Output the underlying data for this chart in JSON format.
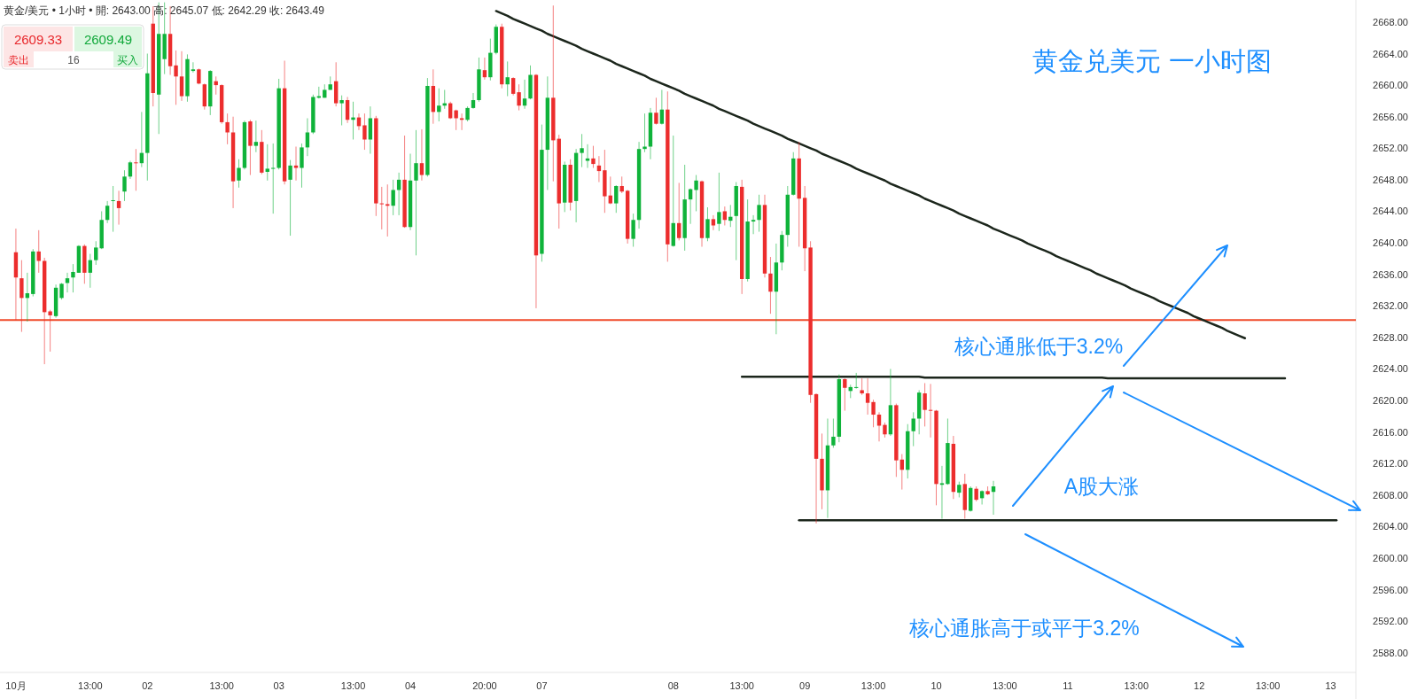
{
  "chart_data": {
    "type": "candlestick",
    "title": "黄金/美元 • 1小时 • 開: 2643.00 高: 2645.07 低: 2642.29 收: 2643.49",
    "categories": [
      "10月",
      null,
      null,
      null,
      null,
      null,
      null,
      null,
      null,
      null,
      null,
      null,
      null,
      "13:00",
      null,
      null,
      null,
      null,
      null,
      null,
      null,
      null,
      null,
      "02",
      null,
      null,
      null,
      null,
      null,
      null,
      null,
      null,
      null,
      null,
      null,
      null,
      "13:00",
      null,
      null,
      null,
      null,
      null,
      null,
      null,
      null,
      null,
      "03",
      null,
      null,
      null,
      null,
      null,
      null,
      null,
      null,
      null,
      null,
      null,
      null,
      "13:00",
      null,
      null,
      null,
      null,
      null,
      null,
      null,
      null,
      null,
      "04",
      null,
      null,
      null,
      null,
      null,
      null,
      null,
      null,
      null,
      null,
      null,
      null,
      "20:00",
      null,
      null,
      null,
      null,
      null,
      null,
      null,
      null,
      null,
      "07",
      null,
      null,
      null,
      null,
      null,
      null,
      null,
      null,
      null,
      null,
      null,
      null,
      null,
      null,
      null,
      null,
      null,
      null,
      null,
      null,
      null,
      null,
      "08",
      null,
      null,
      null,
      null,
      null,
      null,
      null,
      null,
      null,
      null,
      null,
      "13:00",
      null,
      null,
      null,
      null,
      null,
      null,
      null,
      null,
      null,
      null,
      "09",
      null,
      null,
      null,
      null,
      null,
      null,
      null,
      null,
      null,
      null,
      null,
      "13:00",
      null,
      null,
      null,
      null,
      null,
      null,
      null,
      null,
      null,
      null,
      "10",
      null,
      null,
      null,
      null,
      null,
      null,
      null,
      null,
      null,
      null,
      null,
      "13:00",
      null,
      null,
      null,
      null,
      null,
      null,
      null,
      null,
      null,
      null,
      "11",
      null,
      null,
      null,
      null,
      null,
      null,
      null,
      null,
      null,
      null,
      null,
      "13:00",
      null,
      null,
      null,
      null,
      null,
      null,
      null,
      null,
      null,
      null,
      "12",
      null,
      null,
      null,
      null,
      null,
      null,
      null,
      null,
      null,
      null,
      null,
      "13:00",
      null,
      null,
      null,
      null,
      null,
      null,
      null,
      null,
      null,
      null,
      "13",
      null,
      null,
      null,
      null
    ],
    "ohlc": [
      [
        2638.8,
        2641.8,
        2630.2,
        2635.6
      ],
      [
        2635.5,
        2637.8,
        2628.7,
        2633.0
      ],
      [
        2633.0,
        2636.2,
        2630.0,
        2633.6
      ],
      [
        2633.5,
        2639.2,
        2633.2,
        2638.9
      ],
      [
        2638.9,
        2641.6,
        2636.2,
        2637.7
      ],
      [
        2637.7,
        2638.1,
        2624.6,
        2631.2
      ],
      [
        2631.3,
        2631.5,
        2626.2,
        2630.8
      ],
      [
        2630.7,
        2634.7,
        2630.5,
        2634.3
      ],
      [
        2633.0,
        2634.9,
        2632.8,
        2634.8
      ],
      [
        2634.9,
        2636.2,
        2633.7,
        2635.5
      ],
      [
        2635.6,
        2637.3,
        2633.7,
        2636.3
      ],
      [
        2636.2,
        2639.7,
        2636.2,
        2639.6
      ],
      [
        2639.6,
        2639.8,
        2634.8,
        2636.2
      ],
      [
        2636.2,
        2638.6,
        2634.3,
        2637.8
      ],
      [
        2637.8,
        2640.2,
        2637.2,
        2639.4
      ],
      [
        2639.3,
        2644.0,
        2639.2,
        2642.9
      ],
      [
        2642.9,
        2645.3,
        2642.5,
        2644.7
      ],
      [
        2645.3,
        2647.2,
        2641.4,
        2645.4
      ],
      [
        2645.3,
        2646.6,
        2642.3,
        2644.4
      ],
      [
        2646.5,
        2649.2,
        2645.3,
        2648.4
      ],
      [
        2648.4,
        2650.4,
        2648.1,
        2650.2
      ],
      [
        2650.2,
        2651.9,
        2646.6,
        2650.1
      ],
      [
        2650.1,
        2656.6,
        2649.6,
        2651.4
      ],
      [
        2651.4,
        2664.0,
        2647.9,
        2661.5
      ],
      [
        2667.8,
        2670.0,
        2657.3,
        2659.0
      ],
      [
        2658.8,
        2670.5,
        2653.8,
        2666.5
      ],
      [
        2663.3,
        2670.5,
        2661.4,
        2666.5
      ],
      [
        2666.5,
        2670.0,
        2661.3,
        2662.4
      ],
      [
        2662.5,
        2664.4,
        2657.5,
        2661.1
      ],
      [
        2661.1,
        2664.3,
        2658.0,
        2658.6
      ],
      [
        2658.6,
        2663.9,
        2657.9,
        2663.3
      ],
      [
        2661.8,
        2662.9,
        2661.6,
        2662.0
      ],
      [
        2662.0,
        2662.1,
        2660.1,
        2660.2
      ],
      [
        2660.1,
        2660.2,
        2656.9,
        2657.3
      ],
      [
        2657.3,
        2661.9,
        2656.2,
        2661.8
      ],
      [
        2660.5,
        2661.1,
        2658.8,
        2660.0
      ],
      [
        2660.0,
        2660.1,
        2655.1,
        2655.3
      ],
      [
        2655.3,
        2656.4,
        2652.5,
        2654.0
      ],
      [
        2654.0,
        2656.0,
        2644.4,
        2647.8
      ],
      [
        2647.9,
        2650.6,
        2647.0,
        2649.5
      ],
      [
        2649.5,
        2655.5,
        2649.3,
        2655.3
      ],
      [
        2655.4,
        2655.6,
        2648.6,
        2652.3
      ],
      [
        2652.3,
        2655.5,
        2651.5,
        2652.8
      ],
      [
        2652.8,
        2654.3,
        2648.7,
        2648.9
      ],
      [
        2649.0,
        2652.5,
        2647.9,
        2649.4
      ],
      [
        2649.4,
        2652.6,
        2643.7,
        2649.5
      ],
      [
        2649.5,
        2660.8,
        2649.3,
        2659.6
      ],
      [
        2659.6,
        2663.1,
        2647.4,
        2647.8
      ],
      [
        2648.0,
        2650.5,
        2640.9,
        2649.8
      ],
      [
        2649.8,
        2652.2,
        2647.9,
        2649.5
      ],
      [
        2649.5,
        2652.6,
        2647.0,
        2652.1
      ],
      [
        2652.1,
        2655.8,
        2651.0,
        2654.0
      ],
      [
        2654.0,
        2658.8,
        2653.8,
        2658.5
      ],
      [
        2658.4,
        2659.8,
        2658.3,
        2658.6
      ],
      [
        2658.4,
        2660.1,
        2658.4,
        2659.4
      ],
      [
        2659.4,
        2661.1,
        2659.4,
        2660.1
      ],
      [
        2660.5,
        2662.9,
        2657.3,
        2657.7
      ],
      [
        2657.7,
        2658.7,
        2654.9,
        2658.1
      ],
      [
        2658.1,
        2658.5,
        2655.2,
        2655.6
      ],
      [
        2655.6,
        2657.9,
        2653.1,
        2655.9
      ],
      [
        2655.9,
        2656.4,
        2654.3,
        2654.8
      ],
      [
        2654.9,
        2656.4,
        2651.8,
        2653.1
      ],
      [
        2653.1,
        2657.3,
        2651.3,
        2655.8
      ],
      [
        2655.8,
        2656.1,
        2643.4,
        2645.0
      ],
      [
        2645.0,
        2647.1,
        2641.7,
        2644.9
      ],
      [
        2644.9,
        2647.4,
        2640.8,
        2644.7
      ],
      [
        2644.7,
        2648.0,
        2643.5,
        2646.7
      ],
      [
        2646.7,
        2648.9,
        2643.5,
        2648.0
      ],
      [
        2648.0,
        2653.6,
        2641.9,
        2642.0
      ],
      [
        2642.0,
        2651.3,
        2641.6,
        2647.9
      ],
      [
        2647.9,
        2654.3,
        2638.4,
        2650.1
      ],
      [
        2650.1,
        2654.4,
        2647.9,
        2648.6
      ],
      [
        2648.6,
        2660.9,
        2648.4,
        2659.9
      ],
      [
        2659.9,
        2662.0,
        2655.1,
        2656.6
      ],
      [
        2656.6,
        2659.6,
        2655.4,
        2657.4
      ],
      [
        2657.4,
        2659.4,
        2657.0,
        2657.7
      ],
      [
        2657.7,
        2657.9,
        2655.7,
        2655.8
      ],
      [
        2656.8,
        2656.9,
        2654.3,
        2655.8
      ],
      [
        2655.8,
        2656.4,
        2654.3,
        2655.6
      ],
      [
        2655.6,
        2657.3,
        2655.4,
        2657.1
      ],
      [
        2657.1,
        2659.0,
        2657.0,
        2658.1
      ],
      [
        2658.1,
        2663.5,
        2657.9,
        2662.0
      ],
      [
        2661.9,
        2663.5,
        2660.7,
        2661.0
      ],
      [
        2661.0,
        2665.9,
        2660.6,
        2664.1
      ],
      [
        2664.1,
        2667.7,
        2663.9,
        2667.4
      ],
      [
        2667.4,
        2667.8,
        2659.6,
        2660.1
      ],
      [
        2660.1,
        2663.0,
        2658.6,
        2661.0
      ],
      [
        2660.9,
        2661.0,
        2658.7,
        2658.9
      ],
      [
        2659.1,
        2660.1,
        2656.8,
        2657.4
      ],
      [
        2657.4,
        2660.7,
        2657.0,
        2658.3
      ],
      [
        2658.3,
        2662.5,
        2658.2,
        2661.3
      ],
      [
        2661.3,
        2661.4,
        2631.7,
        2638.4
      ],
      [
        2638.6,
        2655.0,
        2637.6,
        2651.8
      ],
      [
        2651.8,
        2661.1,
        2646.7,
        2658.4
      ],
      [
        2658.4,
        2670.1,
        2647.8,
        2653.0
      ],
      [
        2653.2,
        2653.7,
        2641.8,
        2645.0
      ],
      [
        2645.1,
        2650.3,
        2643.9,
        2649.9
      ],
      [
        2649.9,
        2650.6,
        2644.1,
        2645.1
      ],
      [
        2645.3,
        2651.9,
        2642.6,
        2651.4
      ],
      [
        2651.4,
        2653.8,
        2649.6,
        2652.0
      ],
      [
        2650.4,
        2652.5,
        2649.5,
        2650.7
      ],
      [
        2650.7,
        2652.3,
        2649.5,
        2650.0
      ],
      [
        2649.8,
        2651.0,
        2647.7,
        2649.1
      ],
      [
        2649.2,
        2651.8,
        2643.8,
        2645.9
      ],
      [
        2646.0,
        2648.4,
        2644.9,
        2645.0
      ],
      [
        2645.0,
        2647.3,
        2643.8,
        2647.2
      ],
      [
        2647.2,
        2648.4,
        2646.3,
        2646.5
      ],
      [
        2646.6,
        2646.7,
        2639.9,
        2640.5
      ],
      [
        2640.5,
        2643.7,
        2639.5,
        2642.9
      ],
      [
        2642.9,
        2652.8,
        2641.8,
        2651.9
      ],
      [
        2651.9,
        2656.4,
        2651.5,
        2652.2
      ],
      [
        2652.2,
        2657.1,
        2650.6,
        2656.5
      ],
      [
        2656.5,
        2658.4,
        2655.0,
        2655.1
      ],
      [
        2655.1,
        2659.4,
        2655.0,
        2656.9
      ],
      [
        2656.9,
        2659.2,
        2637.6,
        2639.8
      ],
      [
        2639.6,
        2653.6,
        2639.5,
        2642.5
      ],
      [
        2642.5,
        2647.6,
        2640.3,
        2640.6
      ],
      [
        2640.6,
        2649.9,
        2639.0,
        2645.5
      ],
      [
        2645.5,
        2646.9,
        2642.4,
        2646.8
      ],
      [
        2646.7,
        2648.6,
        2644.0,
        2647.9
      ],
      [
        2647.8,
        2647.9,
        2639.5,
        2640.6
      ],
      [
        2640.6,
        2644.5,
        2640.2,
        2643.0
      ],
      [
        2643.0,
        2643.5,
        2641.6,
        2642.2
      ],
      [
        2642.4,
        2648.9,
        2641.5,
        2643.9
      ],
      [
        2644.0,
        2644.6,
        2642.2,
        2642.9
      ],
      [
        2642.8,
        2644.8,
        2642.0,
        2643.3
      ],
      [
        2643.4,
        2647.7,
        2637.8,
        2647.2
      ],
      [
        2647.1,
        2648.0,
        2633.5,
        2635.4
      ],
      [
        2635.4,
        2645.5,
        2635.1,
        2642.7
      ],
      [
        2642.7,
        2643.5,
        2641.1,
        2642.9
      ],
      [
        2642.9,
        2646.1,
        2641.4,
        2644.8
      ],
      [
        2644.8,
        2646.1,
        2635.6,
        2636.1
      ],
      [
        2636.1,
        2638.2,
        2631.0,
        2633.8
      ],
      [
        2633.8,
        2639.9,
        2628.4,
        2637.5
      ],
      [
        2637.5,
        2641.5,
        2636.5,
        2641.0
      ],
      [
        2641.0,
        2647.2,
        2639.5,
        2646.1
      ],
      [
        2646.1,
        2651.5,
        2646.0,
        2650.7
      ],
      [
        2650.7,
        2652.8,
        2639.5,
        2645.6
      ],
      [
        2645.7,
        2647.2,
        2636.4,
        2639.3
      ],
      [
        2639.4,
        2640.2,
        2619.7,
        2620.7
      ],
      [
        2620.8,
        2620.9,
        2604.4,
        2612.6
      ],
      [
        2612.6,
        2615.8,
        2606.2,
        2608.6
      ],
      [
        2608.6,
        2617.7,
        2605.1,
        2614.3
      ],
      [
        2614.3,
        2617.7,
        2614.0,
        2615.4
      ],
      [
        2615.4,
        2623.3,
        2614.7,
        2622.7
      ],
      [
        2622.7,
        2622.8,
        2618.7,
        2621.6
      ],
      [
        2621.2,
        2622.0,
        2620.3,
        2621.7
      ],
      [
        2621.6,
        2623.5,
        2621.5,
        2621.7
      ],
      [
        2621.3,
        2622.8,
        2620.7,
        2620.9
      ],
      [
        2620.9,
        2622.8,
        2618.2,
        2619.7
      ],
      [
        2619.8,
        2620.1,
        2616.6,
        2618.2
      ],
      [
        2618.2,
        2618.5,
        2614.8,
        2616.8
      ],
      [
        2616.9,
        2617.2,
        2615.3,
        2615.7
      ],
      [
        2615.7,
        2624.0,
        2615.5,
        2619.4
      ],
      [
        2619.4,
        2619.6,
        2610.3,
        2612.4
      ],
      [
        2612.5,
        2613.2,
        2608.7,
        2611.2
      ],
      [
        2611.2,
        2617.0,
        2610.1,
        2616.1
      ],
      [
        2616.1,
        2618.5,
        2614.2,
        2617.7
      ],
      [
        2617.7,
        2621.3,
        2615.7,
        2621.0
      ],
      [
        2620.9,
        2622.2,
        2616.7,
        2618.8
      ],
      [
        2618.8,
        2622.1,
        2615.3,
        2618.7
      ],
      [
        2618.7,
        2618.8,
        2606.7,
        2609.4
      ],
      [
        2609.3,
        2611.7,
        2605.0,
        2609.5
      ],
      [
        2609.4,
        2617.7,
        2609.3,
        2614.6
      ],
      [
        2614.5,
        2615.5,
        2607.5,
        2608.4
      ],
      [
        2608.3,
        2609.7,
        2607.7,
        2609.3
      ],
      [
        2609.4,
        2610.7,
        2605.0,
        2606.1
      ],
      [
        2606.0,
        2609.1,
        2605.9,
        2608.9
      ],
      [
        2608.8,
        2609.1,
        2607.2,
        2607.4
      ],
      [
        2607.6,
        2608.6,
        2606.8,
        2608.5
      ],
      [
        2608.5,
        2609.1,
        2608.0,
        2608.1
      ],
      [
        2608.4,
        2609.8,
        2605.5,
        2609.1
      ],
      null,
      null,
      null,
      null,
      null,
      null,
      null,
      null,
      null,
      null,
      null,
      null,
      null,
      null,
      null,
      null,
      null,
      null,
      null,
      null,
      null,
      null,
      null,
      null,
      null,
      null,
      null,
      null,
      null,
      null,
      null,
      null,
      null,
      null,
      null,
      null,
      null,
      null,
      null,
      null,
      null,
      null,
      null,
      null,
      null,
      null,
      null,
      null,
      null,
      null,
      null,
      null,
      null,
      null,
      null,
      null,
      null,
      null,
      null,
      null,
      null,
      null,
      null
    ],
    "colors": [
      "#ec2d2d",
      "#ec2d2d",
      "#0fb33a",
      "#0fb33a",
      "#ec2d2d",
      "#ec2d2d",
      "#ec2d2d",
      "#0fb33a",
      "#0fb33a",
      "#0fb33a",
      "#0fb33a",
      "#0fb33a",
      "#ec2d2d",
      "#0fb33a",
      "#0fb33a",
      "#0fb33a",
      "#0fb33a",
      "#0fb33a",
      "#ec2d2d",
      "#0fb33a",
      "#0fb33a",
      "#ec2d2d",
      "#0fb33a",
      "#0fb33a",
      "#ec2d2d",
      "#0fb33a",
      "#0fb33a",
      "#ec2d2d",
      "#ec2d2d",
      "#ec2d2d",
      "#0fb33a",
      "#0fb33a",
      "#ec2d2d",
      "#ec2d2d",
      "#0fb33a",
      "#ec2d2d",
      "#ec2d2d",
      "#ec2d2d",
      "#ec2d2d",
      "#0fb33a",
      "#0fb33a",
      "#ec2d2d",
      "#0fb33a",
      "#ec2d2d",
      "#0fb33a",
      "#0fb33a",
      "#0fb33a",
      "#ec2d2d",
      "#0fb33a",
      "#ec2d2d",
      "#0fb33a",
      "#0fb33a",
      "#0fb33a",
      "#0fb33a",
      "#0fb33a",
      "#0fb33a",
      "#ec2d2d",
      "#0fb33a",
      "#ec2d2d",
      "#0fb33a",
      "#ec2d2d",
      "#ec2d2d",
      "#0fb33a",
      "#ec2d2d",
      "#ec2d2d",
      "#ec2d2d",
      "#0fb33a",
      "#0fb33a",
      "#ec2d2d",
      "#0fb33a",
      "#0fb33a",
      "#ec2d2d",
      "#0fb33a",
      "#ec2d2d",
      "#0fb33a",
      "#0fb33a",
      "#ec2d2d",
      "#ec2d2d",
      "#ec2d2d",
      "#0fb33a",
      "#0fb33a",
      "#0fb33a",
      "#ec2d2d",
      "#0fb33a",
      "#0fb33a",
      "#ec2d2d",
      "#0fb33a",
      "#ec2d2d",
      "#ec2d2d",
      "#0fb33a",
      "#0fb33a",
      "#ec2d2d",
      "#0fb33a",
      "#0fb33a",
      "#ec2d2d",
      "#ec2d2d",
      "#0fb33a",
      "#ec2d2d",
      "#0fb33a",
      "#0fb33a",
      "#0fb33a",
      "#ec2d2d",
      "#ec2d2d",
      "#ec2d2d",
      "#ec2d2d",
      "#0fb33a",
      "#ec2d2d",
      "#ec2d2d",
      "#0fb33a",
      "#0fb33a",
      "#0fb33a",
      "#0fb33a",
      "#ec2d2d",
      "#0fb33a",
      "#ec2d2d",
      "#0fb33a",
      "#ec2d2d",
      "#0fb33a",
      "#0fb33a",
      "#0fb33a",
      "#ec2d2d",
      "#0fb33a",
      "#ec2d2d",
      "#0fb33a",
      "#ec2d2d",
      "#0fb33a",
      "#0fb33a",
      "#ec2d2d",
      "#0fb33a",
      "#0fb33a",
      "#0fb33a",
      "#ec2d2d",
      "#ec2d2d",
      "#0fb33a",
      "#0fb33a",
      "#0fb33a",
      "#0fb33a",
      "#ec2d2d",
      "#ec2d2d",
      "#ec2d2d",
      "#ec2d2d",
      "#ec2d2d",
      "#0fb33a",
      "#0fb33a",
      "#0fb33a",
      "#ec2d2d",
      "#0fb33a",
      "#0fb33a",
      "#ec2d2d",
      "#ec2d2d",
      "#ec2d2d",
      "#ec2d2d",
      "#ec2d2d",
      "#0fb33a",
      "#ec2d2d",
      "#ec2d2d",
      "#0fb33a",
      "#0fb33a",
      "#0fb33a",
      "#ec2d2d",
      "#ec2d2d",
      "#ec2d2d",
      "#0fb33a",
      "#0fb33a",
      "#ec2d2d",
      "#0fb33a",
      "#ec2d2d",
      "#0fb33a",
      "#ec2d2d",
      "#0fb33a",
      "#ec2d2d",
      "#0fb33a",
      null,
      null,
      null,
      null,
      null,
      null,
      null,
      null,
      null,
      null,
      null,
      null,
      null,
      null,
      null,
      null,
      null,
      null,
      null,
      null,
      null,
      null,
      null,
      null,
      null,
      null,
      null,
      null,
      null,
      null,
      null,
      null,
      null,
      null,
      null,
      null,
      null,
      null,
      null,
      null,
      null,
      null,
      null,
      null,
      null,
      null,
      null,
      null,
      null,
      null,
      null,
      null,
      null,
      null,
      null,
      null,
      null,
      null,
      null,
      null,
      null,
      null,
      null
    ],
    "series": [
      {
        "type": "line",
        "color": "#1c261c",
        "values": [
          null,
          null,
          null,
          null,
          null,
          null,
          null,
          null,
          null,
          null,
          null,
          null,
          null,
          null,
          null,
          null,
          null,
          null,
          null,
          null,
          null,
          null,
          null,
          null,
          null,
          null,
          null,
          null,
          null,
          null,
          null,
          null,
          null,
          null,
          null,
          null,
          null,
          null,
          null,
          null,
          null,
          null,
          null,
          null,
          null,
          null,
          null,
          null,
          null,
          null,
          null,
          null,
          null,
          null,
          null,
          null,
          null,
          null,
          null,
          null,
          null,
          null,
          null,
          null,
          null,
          null,
          null,
          null,
          null,
          null,
          null,
          null,
          null,
          null,
          null,
          null,
          null,
          null,
          null,
          null,
          null,
          null,
          null,
          null,
          2669.4,
          2669.1,
          2668.8,
          2668.4,
          2668.1,
          2667.8,
          2667.5,
          2667.2,
          2666.9,
          2666.5,
          2666.2,
          2665.9,
          2665.6,
          2665.3,
          2665.0,
          2664.6,
          2664.3,
          2664.0,
          2663.7,
          2663.4,
          2663.1,
          2662.7,
          2662.4,
          2662.1,
          2661.8,
          2661.5,
          2661.2,
          2660.8,
          2660.5,
          2660.2,
          2659.9,
          2659.6,
          2659.3,
          2658.9,
          2658.6,
          2658.3,
          2658.0,
          2657.7,
          2657.4,
          2657.0,
          2656.7,
          2656.4,
          2656.1,
          2655.8,
          2655.5,
          2655.1,
          2654.8,
          2654.5,
          2654.2,
          2653.9,
          2653.6,
          2653.2,
          2652.9,
          2652.6,
          2652.3,
          2652.0,
          2651.7,
          2651.3,
          2651.0,
          2650.7,
          2650.4,
          2650.1,
          2649.8,
          2649.4,
          2649.1,
          2648.8,
          2648.5,
          2648.2,
          2647.9,
          2647.5,
          2647.2,
          2646.9,
          2646.6,
          2646.3,
          2646.0,
          2645.6,
          2645.3,
          2645.0,
          2644.7,
          2644.4,
          2644.1,
          2643.7,
          2643.4,
          2643.1,
          2642.8,
          2642.5,
          2642.2,
          2641.8,
          2641.5,
          2641.2,
          2640.9,
          2640.6,
          2640.3,
          2639.9,
          2639.6,
          2639.3,
          2639.0,
          2638.7,
          2638.3,
          2638.0,
          2637.7,
          2637.4,
          2637.1,
          2636.8,
          2636.5,
          2636.1,
          2635.8,
          2635.5,
          2635.2,
          2634.9,
          2634.6,
          2634.2,
          2633.9,
          2633.6,
          2633.3,
          2633.0,
          2632.6,
          2632.3,
          2632.0,
          2631.7,
          2631.4,
          2631.1,
          2630.7,
          2630.4,
          2630.1,
          2629.8,
          2629.5,
          2629.2,
          2628.8,
          2628.5,
          2628.2,
          2627.9,
          null,
          null,
          null,
          null,
          null,
          null,
          null,
          null,
          null,
          null,
          null,
          null,
          null,
          null,
          null,
          null,
          null,
          null,
          null
        ]
      },
      {
        "type": "line",
        "color": "#1c261c",
        "values": [
          null,
          null,
          null,
          null,
          null,
          null,
          null,
          null,
          null,
          null,
          null,
          null,
          null,
          null,
          null,
          null,
          null,
          null,
          null,
          null,
          null,
          null,
          null,
          null,
          null,
          null,
          null,
          null,
          null,
          null,
          null,
          null,
          null,
          null,
          null,
          null,
          null,
          null,
          null,
          null,
          null,
          null,
          null,
          null,
          null,
          null,
          null,
          null,
          null,
          null,
          null,
          null,
          null,
          null,
          null,
          null,
          null,
          null,
          null,
          null,
          null,
          null,
          null,
          null,
          null,
          null,
          null,
          null,
          null,
          null,
          null,
          null,
          null,
          null,
          null,
          null,
          null,
          null,
          null,
          null,
          null,
          null,
          null,
          null,
          null,
          null,
          null,
          null,
          null,
          null,
          null,
          null,
          null,
          null,
          null,
          null,
          null,
          null,
          null,
          null,
          null,
          null,
          null,
          null,
          null,
          null,
          null,
          null,
          null,
          null,
          null,
          null,
          null,
          null,
          null,
          null,
          null,
          null,
          null,
          null,
          null,
          null,
          null,
          null,
          null,
          null,
          null,
          2623.0,
          2623.0,
          2623.0,
          2623.0,
          2623.0,
          2623.0,
          2623.0,
          2623.0,
          2623.0,
          2623.0,
          2623.0,
          2623.0,
          2623.0,
          2623.0,
          2623.0,
          2623.0,
          2623.0,
          2623.0,
          2623.0,
          2623.0,
          2623.0,
          2623.0,
          2623.0,
          2623.0,
          2623.0,
          2623.0,
          2623.0,
          2623.0,
          2623.0,
          2623.0,
          2623.0,
          2623.0,
          2622.9,
          2622.9,
          2622.9,
          2622.9,
          2622.9,
          2622.9,
          2622.9,
          2622.9,
          2622.9,
          2622.9,
          2622.9,
          2622.9,
          2622.9,
          2622.9,
          2622.9,
          2622.9,
          2622.9,
          2622.9,
          2622.9,
          2622.9,
          2622.9,
          2622.9,
          2622.9,
          2622.9,
          2622.9,
          2622.9,
          2622.9,
          2622.9,
          2622.9,
          2622.9,
          2622.9,
          2622.9,
          2622.8,
          2622.8,
          2622.8,
          2622.8,
          2622.8,
          2622.8,
          2622.8,
          2622.8,
          2622.8,
          2622.8,
          2622.8,
          2622.8,
          2622.8,
          2622.8,
          2622.8,
          2622.8,
          2622.8,
          2622.8,
          2622.8,
          2622.8,
          2622.8,
          2622.8,
          2622.8,
          2622.8,
          2622.8,
          2622.8,
          2622.8,
          2622.8,
          2622.8,
          2622.8,
          2622.8,
          2622.8,
          null,
          null,
          null,
          null,
          null,
          null,
          null,
          null,
          null,
          null,
          null,
          null
        ]
      },
      {
        "type": "line",
        "color": "#1c261c",
        "values": [
          null,
          null,
          null,
          null,
          null,
          null,
          null,
          null,
          null,
          null,
          null,
          null,
          null,
          null,
          null,
          null,
          null,
          null,
          null,
          null,
          null,
          null,
          null,
          null,
          null,
          null,
          null,
          null,
          null,
          null,
          null,
          null,
          null,
          null,
          null,
          null,
          null,
          null,
          null,
          null,
          null,
          null,
          null,
          null,
          null,
          null,
          null,
          null,
          null,
          null,
          null,
          null,
          null,
          null,
          null,
          null,
          null,
          null,
          null,
          null,
          null,
          null,
          null,
          null,
          null,
          null,
          null,
          null,
          null,
          null,
          null,
          null,
          null,
          null,
          null,
          null,
          null,
          null,
          null,
          null,
          null,
          null,
          null,
          null,
          null,
          null,
          null,
          null,
          null,
          null,
          null,
          null,
          null,
          null,
          null,
          null,
          null,
          null,
          null,
          null,
          null,
          null,
          null,
          null,
          null,
          null,
          null,
          null,
          null,
          null,
          null,
          null,
          null,
          null,
          null,
          null,
          null,
          null,
          null,
          null,
          null,
          null,
          null,
          null,
          null,
          null,
          null,
          null,
          null,
          null,
          null,
          null,
          null,
          null,
          null,
          null,
          null,
          2604.8,
          2604.8,
          2604.8,
          2604.8,
          2604.8,
          2604.8,
          2604.8,
          2604.8,
          2604.8,
          2604.8,
          2604.8,
          2604.8,
          2604.8,
          2604.8,
          2604.8,
          2604.8,
          2604.8,
          2604.8,
          2604.8,
          2604.8,
          2604.8,
          2604.8,
          2604.8,
          2604.8,
          2604.8,
          2604.8,
          2604.8,
          2604.8,
          2604.8,
          2604.8,
          2604.8,
          2604.8,
          2604.8,
          2604.8,
          2604.8,
          2604.8,
          2604.8,
          2604.8,
          2604.8,
          2604.8,
          2604.8,
          2604.8,
          2604.8,
          2604.8,
          2604.8,
          2604.8,
          2604.8,
          2604.8,
          2604.8,
          2604.8,
          2604.8,
          2604.8,
          2604.8,
          2604.8,
          2604.8,
          2604.8,
          2604.8,
          2604.8,
          2604.8,
          2604.8,
          2604.8,
          2604.8,
          2604.8,
          2604.8,
          2604.8,
          2604.8,
          2604.8,
          2604.8,
          2604.8,
          2604.8,
          2604.8,
          2604.8,
          2604.8,
          2604.8,
          2604.8,
          2604.8,
          2604.8,
          2604.8,
          2604.8,
          2604.8,
          2604.8,
          2604.8,
          2604.8,
          2604.8,
          2604.8,
          2604.8,
          2604.8,
          2604.8,
          2604.8,
          2604.8,
          2604.8,
          2604.8,
          2604.8,
          2604.8,
          2604.8,
          null,
          null,
          null
        ]
      }
    ],
    "ylim": [
      2585.5,
      2670.8
    ],
    "yticks": [
      {
        "value": 2588,
        "label": "2588.00"
      },
      {
        "value": 2592,
        "label": "2592.00"
      },
      {
        "value": 2596,
        "label": "2596.00"
      },
      {
        "value": 2600,
        "label": "2600.00"
      },
      {
        "value": 2604,
        "label": "2604.00"
      },
      {
        "value": 2608,
        "label": "2608.00"
      },
      {
        "value": 2612,
        "label": "2612.00"
      },
      {
        "value": 2616,
        "label": "2616.00"
      },
      {
        "value": 2620,
        "label": "2620.00"
      },
      {
        "value": 2624,
        "label": "2624.00"
      },
      {
        "value": 2628,
        "label": "2628.00"
      },
      {
        "value": 2632,
        "label": "2632.00"
      },
      {
        "value": 2636,
        "label": "2636.00"
      },
      {
        "value": 2640,
        "label": "2640.00"
      },
      {
        "value": 2644,
        "label": "2644.00"
      },
      {
        "value": 2648,
        "label": "2648.00"
      },
      {
        "value": 2652,
        "label": "2652.00"
      },
      {
        "value": 2656,
        "label": "2656.00"
      },
      {
        "value": 2660,
        "label": "2660.00"
      },
      {
        "value": 2664,
        "label": "2664.00"
      },
      {
        "value": 2668,
        "label": "2668.00"
      }
    ],
    "ref_lines": [
      {
        "axis": "y",
        "value": 2630.2,
        "color": "#f04a2a"
      }
    ],
    "annotations": [
      "黄金兑美元 一小时图",
      "核心通胀低于3.2%",
      "A股大涨",
      "核心通胀高于或平于3.2%",
      "2609.33",
      "2609.49",
      "卖出",
      "16",
      "买入"
    ]
  }
}
